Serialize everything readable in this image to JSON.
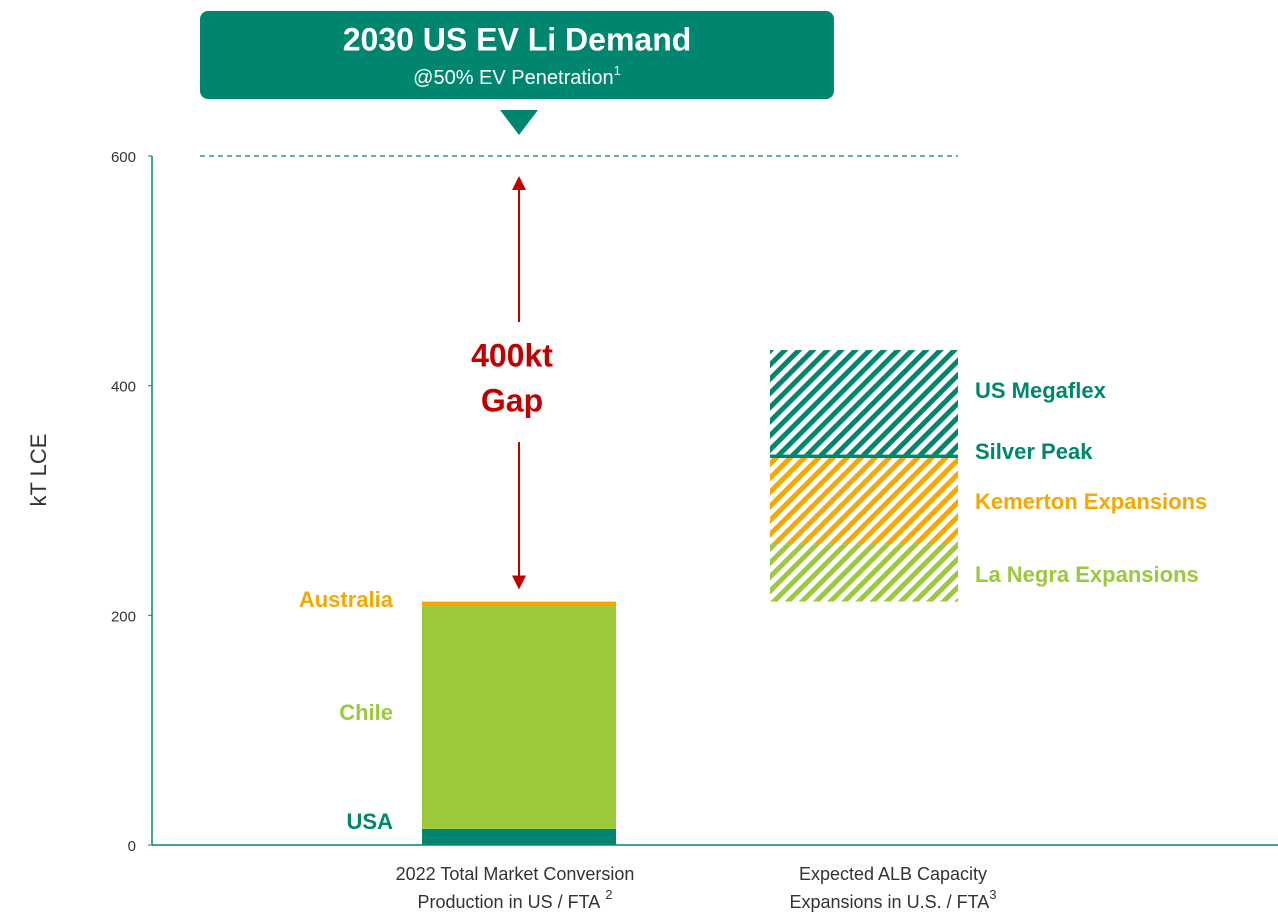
{
  "chart_data": {
    "type": "bar",
    "title": "2030 US EV Li Demand",
    "subtitle": "@50% EV Penetration",
    "subtitle_note": "1",
    "y_label": "kT LCE",
    "ylim": [
      0,
      600
    ],
    "yticks": [
      0,
      200,
      400,
      600
    ],
    "demand": 600,
    "annotation": [
      "400kt",
      "Gap"
    ],
    "waterfall": true,
    "categories": [
      [
        "2022 Total Market Conversion",
        "Production in US / FTA"
      ],
      [
        "Expected ALB Capacity",
        "Expansions in U.S. / FTA"
      ]
    ],
    "category_notes": [
      "2",
      "3"
    ],
    "series": [
      {
        "name": "USA",
        "color": "#00866e",
        "values": [
          14,
          null
        ]
      },
      {
        "name": "Chile",
        "color": "#9cc83c",
        "values": [
          194,
          null
        ]
      },
      {
        "name": "Australia",
        "color": "#f5a800",
        "values": [
          4,
          null
        ]
      },
      {
        "name": "La Negra Expansions",
        "color": "#9cc83c",
        "hatch": true,
        "values": [
          null,
          50
        ]
      },
      {
        "name": "Kemerton Expansions",
        "color": "#f5a800",
        "hatch": true,
        "values": [
          null,
          75
        ]
      },
      {
        "name": "Silver Peak",
        "color": "#00866e",
        "values": [
          null,
          3
        ]
      },
      {
        "name": "US Megaflex",
        "color": "#00866e",
        "hatch": true,
        "values": [
          null,
          91
        ]
      }
    ]
  }
}
